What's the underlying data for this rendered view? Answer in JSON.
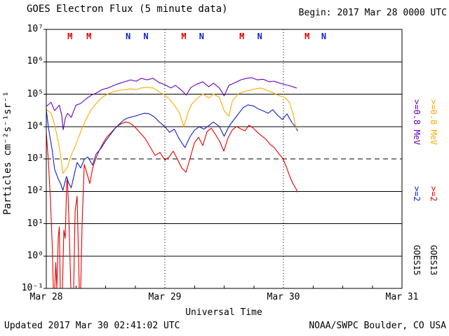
{
  "chart_data": {
    "type": "line",
    "title": "GOES Electron Flux (5 minute data)",
    "begin_label": "Begin: 2017 Mar 28 0000 UTC",
    "updated_label": "Updated 2017 Mar 30 02:41:02 UTC",
    "credit": "NOAA/SWPC Boulder, CO USA",
    "xlabel": "Universal Time",
    "ylabel": "Particles cm⁻²s⁻¹sr⁻¹",
    "y_scale": "log10",
    "ylim_log10": [
      -1,
      7
    ],
    "y_ticks": [
      {
        "exp": 7,
        "label": "10⁷"
      },
      {
        "exp": 6,
        "label": "10⁶"
      },
      {
        "exp": 5,
        "label": "10⁵"
      },
      {
        "exp": 4,
        "label": "10⁴"
      },
      {
        "exp": 3,
        "label": "10³"
      },
      {
        "exp": 2,
        "label": "10²"
      },
      {
        "exp": 1,
        "label": "10¹"
      },
      {
        "exp": 0,
        "label": "10⁰"
      },
      {
        "exp": -1,
        "label": "10⁻¹"
      }
    ],
    "x_ticks": [
      {
        "t": 0,
        "label": "Mar 28"
      },
      {
        "t": 1,
        "label": "Mar 29"
      },
      {
        "t": 2,
        "label": "Mar 30"
      },
      {
        "t": 3,
        "label": "Mar 31"
      }
    ],
    "day_boundaries": [
      1,
      2
    ],
    "threshold": {
      "log10_value": 3,
      "style": "dashed"
    },
    "event_markers": [
      {
        "t": 0.2,
        "label": "M",
        "color": "#E80000"
      },
      {
        "t": 0.36,
        "label": "M",
        "color": "#E80000"
      },
      {
        "t": 0.69,
        "label": "N",
        "color": "#1122CC"
      },
      {
        "t": 0.84,
        "label": "N",
        "color": "#1122CC"
      },
      {
        "t": 1.16,
        "label": "M",
        "color": "#E80000"
      },
      {
        "t": 1.31,
        "label": "N",
        "color": "#1122CC"
      },
      {
        "t": 1.65,
        "label": "M",
        "color": "#E80000"
      },
      {
        "t": 1.8,
        "label": "N",
        "color": "#1122CC"
      },
      {
        "t": 2.2,
        "label": "M",
        "color": "#E80000"
      },
      {
        "t": 2.34,
        "label": "N",
        "color": "#1122CC"
      }
    ],
    "legend": {
      "position": "right-margin-rotated",
      "columns": [
        {
          "satellite": "GOES15",
          "labels": [
            {
              "text": ">=0.8 MeV",
              "color": "#6600BB"
            },
            {
              "text": ">=2",
              "color": "#1122CC"
            }
          ]
        },
        {
          "satellite": "GOES13",
          "labels": [
            {
              "text": ">=0.8 MeV",
              "color": "#FFAA00"
            },
            {
              "text": ">=2",
              "color": "#E80000"
            }
          ]
        }
      ]
    },
    "series": [
      {
        "id": "goes15-ge08mev",
        "name": "GOES15 >=0.8 MeV",
        "color": "#6600BB",
        "points": [
          [
            0.0,
            4.62
          ],
          [
            0.04,
            4.75
          ],
          [
            0.07,
            4.49
          ],
          [
            0.11,
            4.66
          ],
          [
            0.13,
            4.35
          ],
          [
            0.142,
            3.9
          ],
          [
            0.16,
            4.25
          ],
          [
            0.18,
            4.41
          ],
          [
            0.21,
            4.28
          ],
          [
            0.25,
            4.66
          ],
          [
            0.29,
            4.71
          ],
          [
            0.33,
            4.84
          ],
          [
            0.38,
            4.97
          ],
          [
            0.43,
            5.05
          ],
          [
            0.47,
            5.14
          ],
          [
            0.52,
            5.19
          ],
          [
            0.57,
            5.27
          ],
          [
            0.62,
            5.34
          ],
          [
            0.66,
            5.38
          ],
          [
            0.71,
            5.44
          ],
          [
            0.76,
            5.4
          ],
          [
            0.8,
            5.49
          ],
          [
            0.85,
            5.44
          ],
          [
            0.9,
            5.49
          ],
          [
            0.95,
            5.36
          ],
          [
            1.0,
            5.29
          ],
          [
            1.05,
            5.19
          ],
          [
            1.09,
            5.27
          ],
          [
            1.14,
            5.12
          ],
          [
            1.18,
            4.97
          ],
          [
            1.22,
            5.21
          ],
          [
            1.27,
            5.31
          ],
          [
            1.32,
            5.38
          ],
          [
            1.37,
            5.23
          ],
          [
            1.41,
            5.34
          ],
          [
            1.46,
            5.19
          ],
          [
            1.5,
            4.95
          ],
          [
            1.54,
            5.27
          ],
          [
            1.59,
            5.35
          ],
          [
            1.64,
            5.44
          ],
          [
            1.69,
            5.49
          ],
          [
            1.73,
            5.51
          ],
          [
            1.78,
            5.44
          ],
          [
            1.83,
            5.46
          ],
          [
            1.88,
            5.38
          ],
          [
            1.92,
            5.4
          ],
          [
            1.97,
            5.34
          ],
          [
            2.02,
            5.29
          ],
          [
            2.06,
            5.25
          ],
          [
            2.11,
            5.19
          ]
        ]
      },
      {
        "id": "goes13-ge08mev",
        "name": "GOES13 >=0.8 MeV",
        "color": "#FFAA00",
        "points": [
          [
            0.0,
            4.53
          ],
          [
            0.04,
            4.41
          ],
          [
            0.07,
            4.06
          ],
          [
            0.11,
            3.37
          ],
          [
            0.14,
            2.55
          ],
          [
            0.18,
            2.76
          ],
          [
            0.21,
            3.11
          ],
          [
            0.25,
            3.45
          ],
          [
            0.29,
            3.84
          ],
          [
            0.33,
            4.19
          ],
          [
            0.38,
            4.53
          ],
          [
            0.43,
            4.75
          ],
          [
            0.47,
            4.9
          ],
          [
            0.52,
            5.01
          ],
          [
            0.57,
            5.08
          ],
          [
            0.62,
            5.12
          ],
          [
            0.66,
            5.14
          ],
          [
            0.71,
            5.16
          ],
          [
            0.76,
            5.14
          ],
          [
            0.8,
            5.19
          ],
          [
            0.85,
            5.21
          ],
          [
            0.9,
            5.19
          ],
          [
            0.95,
            5.08
          ],
          [
            1.0,
            4.97
          ],
          [
            1.04,
            4.84
          ],
          [
            1.08,
            4.66
          ],
          [
            1.12,
            4.45
          ],
          [
            1.16,
            3.99
          ],
          [
            1.2,
            4.49
          ],
          [
            1.23,
            4.71
          ],
          [
            1.27,
            4.86
          ],
          [
            1.32,
            5.01
          ],
          [
            1.37,
            4.88
          ],
          [
            1.41,
            5.01
          ],
          [
            1.46,
            4.9
          ],
          [
            1.5,
            4.49
          ],
          [
            1.54,
            4.32
          ],
          [
            1.57,
            4.8
          ],
          [
            1.62,
            5.01
          ],
          [
            1.67,
            5.08
          ],
          [
            1.72,
            5.12
          ],
          [
            1.76,
            5.16
          ],
          [
            1.81,
            5.19
          ],
          [
            1.86,
            5.12
          ],
          [
            1.91,
            5.05
          ],
          [
            1.95,
            4.97
          ],
          [
            2.01,
            4.9
          ],
          [
            2.05,
            4.75
          ],
          [
            2.08,
            4.41
          ],
          [
            2.11,
            3.89
          ]
        ]
      },
      {
        "id": "goes15-ge2mev",
        "name": "GOES15 >=2 MeV",
        "color": "#1122CC",
        "points": [
          [
            0.0,
            4.51
          ],
          [
            0.02,
            3.91
          ],
          [
            0.05,
            3.26
          ],
          [
            0.07,
            2.68
          ],
          [
            0.1,
            2.39
          ],
          [
            0.12,
            2.24
          ],
          [
            0.14,
            2.03
          ],
          [
            0.17,
            2.46
          ],
          [
            0.19,
            2.24
          ],
          [
            0.21,
            2.11
          ],
          [
            0.24,
            2.59
          ],
          [
            0.26,
            2.89
          ],
          [
            0.29,
            2.72
          ],
          [
            0.32,
            2.98
          ],
          [
            0.35,
            3.06
          ],
          [
            0.39,
            2.81
          ],
          [
            0.42,
            3.15
          ],
          [
            0.46,
            3.32
          ],
          [
            0.5,
            3.55
          ],
          [
            0.54,
            3.75
          ],
          [
            0.58,
            3.94
          ],
          [
            0.62,
            4.09
          ],
          [
            0.66,
            4.22
          ],
          [
            0.7,
            4.28
          ],
          [
            0.75,
            4.32
          ],
          [
            0.79,
            4.37
          ],
          [
            0.83,
            4.41
          ],
          [
            0.87,
            4.39
          ],
          [
            0.91,
            4.3
          ],
          [
            0.95,
            4.15
          ],
          [
            1.0,
            4.0
          ],
          [
            1.04,
            3.82
          ],
          [
            1.08,
            3.92
          ],
          [
            1.12,
            3.62
          ],
          [
            1.17,
            3.35
          ],
          [
            1.21,
            3.67
          ],
          [
            1.25,
            3.89
          ],
          [
            1.29,
            3.99
          ],
          [
            1.33,
            3.92
          ],
          [
            1.37,
            4.03
          ],
          [
            1.41,
            4.14
          ],
          [
            1.46,
            4.0
          ],
          [
            1.5,
            3.7
          ],
          [
            1.54,
            4.0
          ],
          [
            1.58,
            4.2
          ],
          [
            1.62,
            4.39
          ],
          [
            1.66,
            4.58
          ],
          [
            1.7,
            4.67
          ],
          [
            1.75,
            4.63
          ],
          [
            1.79,
            4.54
          ],
          [
            1.83,
            4.48
          ],
          [
            1.87,
            4.41
          ],
          [
            1.91,
            4.52
          ],
          [
            1.95,
            4.35
          ],
          [
            1.99,
            4.22
          ],
          [
            2.03,
            4.39
          ],
          [
            2.07,
            4.13
          ],
          [
            2.1,
            4.0
          ],
          [
            2.12,
            3.87
          ]
        ]
      },
      {
        "id": "goes13-ge2mev",
        "name": "GOES13 >=2 MeV",
        "color": "#E80000",
        "points": [
          [
            0.0,
            3.8
          ],
          [
            0.018,
            2.94
          ],
          [
            0.036,
            1.64
          ],
          [
            0.05,
            0.3
          ],
          [
            0.059,
            -1.0
          ],
          [
            0.071,
            -1.0
          ],
          [
            0.08,
            -0.2
          ],
          [
            0.089,
            -1.0
          ],
          [
            0.101,
            0.6
          ],
          [
            0.11,
            0.9
          ],
          [
            0.118,
            -1.0
          ],
          [
            0.136,
            -1.0
          ],
          [
            0.148,
            0.8
          ],
          [
            0.16,
            0.55
          ],
          [
            0.172,
            2.3
          ],
          [
            0.178,
            2.39
          ],
          [
            0.19,
            1.2
          ],
          [
            0.207,
            -1.0
          ],
          [
            0.231,
            -1.0
          ],
          [
            0.243,
            1.4
          ],
          [
            0.26,
            1.85
          ],
          [
            0.278,
            -1.0
          ],
          [
            0.29,
            -1.0
          ],
          [
            0.302,
            0.99
          ],
          [
            0.32,
            2.83
          ],
          [
            0.343,
            2.55
          ],
          [
            0.367,
            2.24
          ],
          [
            0.391,
            2.72
          ],
          [
            0.414,
            2.98
          ],
          [
            0.444,
            3.24
          ],
          [
            0.473,
            3.45
          ],
          [
            0.509,
            3.67
          ],
          [
            0.544,
            3.8
          ],
          [
            0.586,
            3.97
          ],
          [
            0.627,
            4.08
          ],
          [
            0.669,
            4.14
          ],
          [
            0.71,
            4.1
          ],
          [
            0.751,
            3.97
          ],
          [
            0.793,
            3.8
          ],
          [
            0.834,
            3.63
          ],
          [
            0.876,
            3.37
          ],
          [
            0.917,
            3.11
          ],
          [
            0.959,
            3.2
          ],
          [
            1.0,
            2.96
          ],
          [
            1.036,
            3.06
          ],
          [
            1.071,
            3.24
          ],
          [
            1.107,
            2.98
          ],
          [
            1.142,
            2.72
          ],
          [
            1.178,
            2.59
          ],
          [
            1.213,
            3.02
          ],
          [
            1.249,
            3.5
          ],
          [
            1.284,
            3.67
          ],
          [
            1.32,
            3.41
          ],
          [
            1.355,
            3.84
          ],
          [
            1.391,
            3.95
          ],
          [
            1.426,
            3.76
          ],
          [
            1.462,
            3.54
          ],
          [
            1.497,
            3.24
          ],
          [
            1.533,
            3.65
          ],
          [
            1.568,
            3.89
          ],
          [
            1.604,
            4.0
          ],
          [
            1.639,
            3.93
          ],
          [
            1.675,
            3.87
          ],
          [
            1.71,
            4.04
          ],
          [
            1.746,
            3.95
          ],
          [
            1.781,
            3.82
          ],
          [
            1.817,
            3.71
          ],
          [
            1.852,
            3.61
          ],
          [
            1.888,
            3.45
          ],
          [
            1.923,
            3.35
          ],
          [
            1.959,
            3.17
          ],
          [
            1.994,
            3.02
          ],
          [
            2.024,
            2.76
          ],
          [
            2.053,
            2.46
          ],
          [
            2.083,
            2.22
          ],
          [
            2.107,
            2.07
          ],
          [
            2.118,
            1.98
          ]
        ]
      }
    ]
  }
}
